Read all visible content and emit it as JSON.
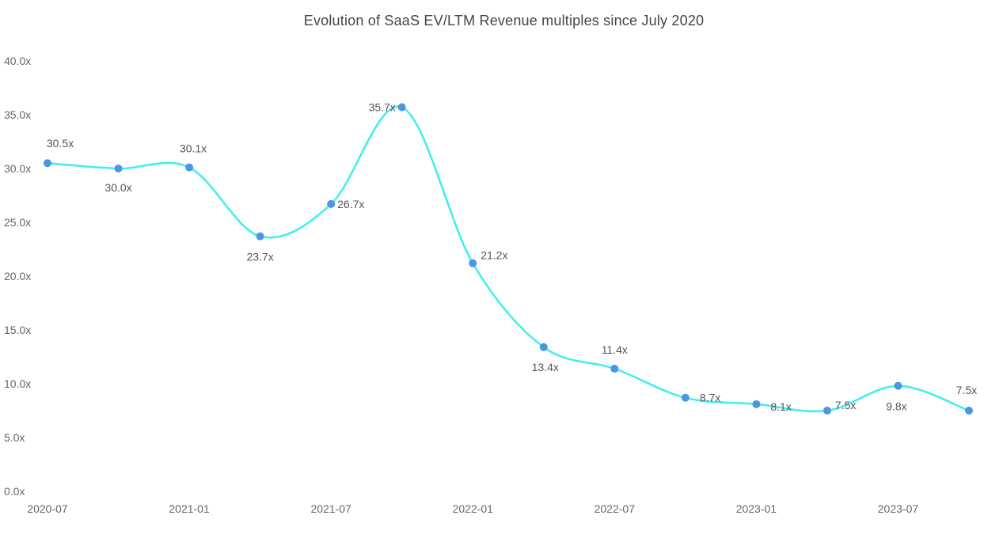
{
  "chart_data": {
    "type": "line",
    "title": "Evolution of SaaS EV/LTM Revenue multiples since July 2020",
    "xlabel": "",
    "ylabel": "",
    "ylim": [
      0,
      40
    ],
    "ytick_labels": [
      "0.0x",
      "5.0x",
      "10.0x",
      "15.0x",
      "20.0x",
      "25.0x",
      "30.0x",
      "35.0x",
      "40.0x"
    ],
    "xtick_labels": [
      "2020-07",
      "2021-01",
      "2021-07",
      "2022-01",
      "2022-07",
      "2023-01",
      "2023-07"
    ],
    "x": [
      "2020-07",
      "2020-10",
      "2021-01",
      "2021-04",
      "2021-07",
      "2021-10",
      "2022-01",
      "2022-04",
      "2022-07",
      "2022-10",
      "2023-01",
      "2023-04",
      "2023-07",
      "2023-10"
    ],
    "values": [
      30.5,
      30.0,
      30.1,
      23.7,
      26.7,
      35.7,
      21.2,
      13.4,
      11.4,
      8.7,
      8.1,
      7.5,
      9.8,
      7.5
    ],
    "data_labels": [
      "30.5x",
      "30.0x",
      "30.1x",
      "23.7x",
      "26.7x",
      "35.7x",
      "21.2x",
      "13.4x",
      "11.4x",
      "8.7x",
      "8.1x",
      "7.5x",
      "9.8x",
      "7.5x"
    ],
    "grid": false,
    "colors": {
      "line": "#3EEFEF",
      "marker": "#4A97E0"
    }
  }
}
